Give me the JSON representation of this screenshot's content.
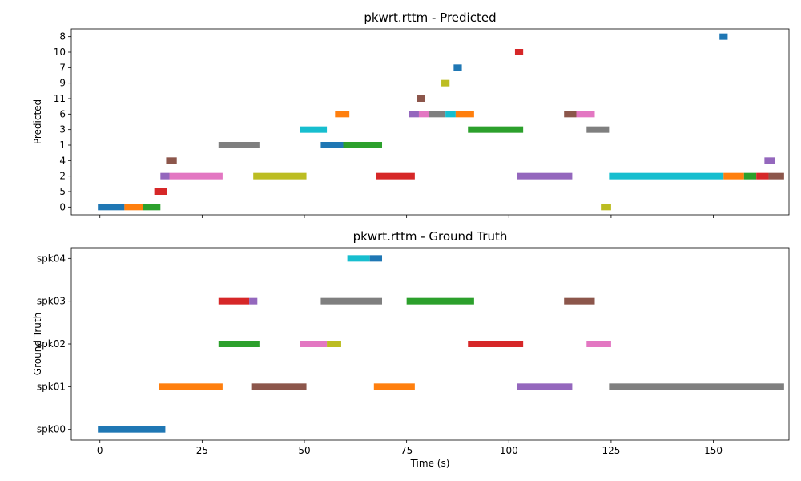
{
  "palette": [
    "#1f77b4",
    "#ff7f0e",
    "#2ca02c",
    "#d62728",
    "#9467bd",
    "#8c564b",
    "#e377c2",
    "#7f7f7f",
    "#bcbd22",
    "#17becf"
  ],
  "chart_data": [
    {
      "type": "timeline",
      "title": "pkwrt.rttm - Predicted",
      "xlabel": "",
      "ylabel": "Predicted",
      "xlim": [
        -7,
        168.5
      ],
      "xticks": [
        0,
        25,
        50,
        75,
        100,
        125,
        150
      ],
      "show_xtick_labels": false,
      "categories": [
        "0",
        "5",
        "2",
        "4",
        "1",
        "3",
        "6",
        "11",
        "9",
        "7",
        "10",
        "8"
      ],
      "segments": [
        {
          "row": "0",
          "start": -0.5,
          "end": 6,
          "color": "#1f77b4"
        },
        {
          "row": "0",
          "start": 6,
          "end": 10.5,
          "color": "#ff7f0e"
        },
        {
          "row": "0",
          "start": 10.5,
          "end": 14.8,
          "color": "#2ca02c"
        },
        {
          "row": "0",
          "start": 122.5,
          "end": 125,
          "color": "#bcbd22"
        },
        {
          "row": "5",
          "start": 13.3,
          "end": 16.5,
          "color": "#d62728"
        },
        {
          "row": "2",
          "start": 14.8,
          "end": 17,
          "color": "#9467bd"
        },
        {
          "row": "2",
          "start": 17,
          "end": 30,
          "color": "#e377c2"
        },
        {
          "row": "2",
          "start": 37.5,
          "end": 50.5,
          "color": "#bcbd22"
        },
        {
          "row": "2",
          "start": 67.5,
          "end": 77,
          "color": "#d62728"
        },
        {
          "row": "2",
          "start": 102,
          "end": 115.5,
          "color": "#9467bd"
        },
        {
          "row": "2",
          "start": 124.5,
          "end": 152.5,
          "color": "#17becf"
        },
        {
          "row": "2",
          "start": 152.5,
          "end": 157.5,
          "color": "#ff7f0e"
        },
        {
          "row": "2",
          "start": 157.5,
          "end": 160.5,
          "color": "#2ca02c"
        },
        {
          "row": "2",
          "start": 160.5,
          "end": 163.5,
          "color": "#d62728"
        },
        {
          "row": "2",
          "start": 163.5,
          "end": 167.3,
          "color": "#8c564b"
        },
        {
          "row": "4",
          "start": 16.2,
          "end": 18.8,
          "color": "#8c564b"
        },
        {
          "row": "4",
          "start": 162.5,
          "end": 165,
          "color": "#9467bd"
        },
        {
          "row": "1",
          "start": 29,
          "end": 39,
          "color": "#7f7f7f"
        },
        {
          "row": "1",
          "start": 54,
          "end": 59.5,
          "color": "#1f77b4"
        },
        {
          "row": "1",
          "start": 59.5,
          "end": 69,
          "color": "#2ca02c"
        },
        {
          "row": "3",
          "start": 49,
          "end": 55.5,
          "color": "#17becf"
        },
        {
          "row": "3",
          "start": 90,
          "end": 103.5,
          "color": "#2ca02c"
        },
        {
          "row": "3",
          "start": 119,
          "end": 124.5,
          "color": "#7f7f7f"
        },
        {
          "row": "6",
          "start": 57.5,
          "end": 61,
          "color": "#ff7f0e"
        },
        {
          "row": "6",
          "start": 75.5,
          "end": 78,
          "color": "#9467bd"
        },
        {
          "row": "6",
          "start": 78,
          "end": 80.5,
          "color": "#e377c2"
        },
        {
          "row": "6",
          "start": 80.5,
          "end": 84.5,
          "color": "#7f7f7f"
        },
        {
          "row": "6",
          "start": 84.5,
          "end": 87,
          "color": "#17becf"
        },
        {
          "row": "6",
          "start": 87,
          "end": 91.5,
          "color": "#ff7f0e"
        },
        {
          "row": "6",
          "start": 113.5,
          "end": 116.5,
          "color": "#8c564b"
        },
        {
          "row": "6",
          "start": 116.5,
          "end": 121,
          "color": "#e377c2"
        },
        {
          "row": "11",
          "start": 77.5,
          "end": 79.5,
          "color": "#8c564b"
        },
        {
          "row": "9",
          "start": 83.5,
          "end": 85.5,
          "color": "#bcbd22"
        },
        {
          "row": "7",
          "start": 86.5,
          "end": 88.5,
          "color": "#1f77b4"
        },
        {
          "row": "10",
          "start": 101.5,
          "end": 103.5,
          "color": "#d62728"
        },
        {
          "row": "8",
          "start": 151.5,
          "end": 153.5,
          "color": "#1f77b4"
        }
      ]
    },
    {
      "type": "timeline",
      "title": "pkwrt.rttm - Ground Truth",
      "xlabel": "Time (s)",
      "ylabel": "Ground Truth",
      "xlim": [
        -7,
        168.5
      ],
      "xticks": [
        0,
        25,
        50,
        75,
        100,
        125,
        150
      ],
      "show_xtick_labels": true,
      "categories": [
        "spk00",
        "spk01",
        "spk02",
        "spk03",
        "spk04"
      ],
      "segments": [
        {
          "row": "spk00",
          "start": -0.5,
          "end": 16,
          "color": "#1f77b4"
        },
        {
          "row": "spk01",
          "start": 14.5,
          "end": 30,
          "color": "#ff7f0e"
        },
        {
          "row": "spk01",
          "start": 37,
          "end": 50.5,
          "color": "#8c564b"
        },
        {
          "row": "spk01",
          "start": 67,
          "end": 77,
          "color": "#ff7f0e"
        },
        {
          "row": "spk01",
          "start": 102,
          "end": 115.5,
          "color": "#9467bd"
        },
        {
          "row": "spk01",
          "start": 124.5,
          "end": 167.3,
          "color": "#7f7f7f"
        },
        {
          "row": "spk02",
          "start": 29,
          "end": 39,
          "color": "#2ca02c"
        },
        {
          "row": "spk02",
          "start": 49,
          "end": 55.5,
          "color": "#e377c2"
        },
        {
          "row": "spk02",
          "start": 55.5,
          "end": 59,
          "color": "#bcbd22"
        },
        {
          "row": "spk02",
          "start": 90,
          "end": 103.5,
          "color": "#d62728"
        },
        {
          "row": "spk02",
          "start": 119,
          "end": 125,
          "color": "#e377c2"
        },
        {
          "row": "spk03",
          "start": 29,
          "end": 36.5,
          "color": "#d62728"
        },
        {
          "row": "spk03",
          "start": 36.5,
          "end": 38.5,
          "color": "#9467bd"
        },
        {
          "row": "spk03",
          "start": 54,
          "end": 69,
          "color": "#7f7f7f"
        },
        {
          "row": "spk03",
          "start": 75,
          "end": 91.5,
          "color": "#2ca02c"
        },
        {
          "row": "spk03",
          "start": 113.5,
          "end": 121,
          "color": "#8c564b"
        },
        {
          "row": "spk04",
          "start": 60.5,
          "end": 66,
          "color": "#17becf"
        },
        {
          "row": "spk04",
          "start": 66,
          "end": 69,
          "color": "#1f77b4"
        }
      ]
    }
  ]
}
